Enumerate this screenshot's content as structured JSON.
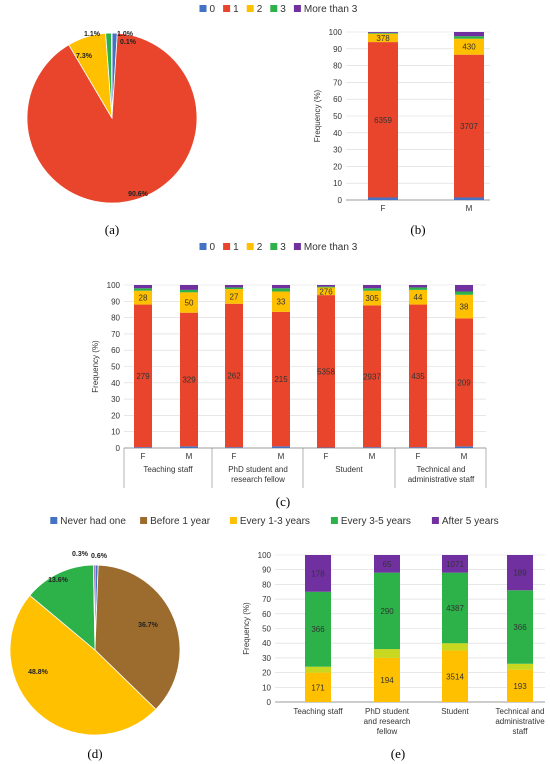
{
  "colors": {
    "c0": "#4472c4",
    "c1": "#e8452c",
    "c2": "#ffc000",
    "c3": "#2db24a",
    "c4": "#7030a0",
    "before1": "#9c6b2e",
    "grid": "#d9d9d9",
    "axis": "#808080"
  },
  "panel_labels": {
    "a": "(a)",
    "b": "(b)",
    "c": "(c)",
    "d": "(d)",
    "e": "(e)"
  },
  "chart_data": [
    {
      "id": "a",
      "type": "pie",
      "legend_position": "top",
      "legend": [
        "0",
        "1",
        "2",
        "3",
        "More than 3"
      ],
      "values": [
        1.0,
        90.6,
        7.3,
        1.1,
        0.1
      ],
      "labels": [
        "1.0%",
        "90.6%",
        "7.3%",
        "1.1%",
        "0.1%"
      ]
    },
    {
      "id": "b",
      "type": "bar",
      "stacked": true,
      "ylabel": "Frequency (%)",
      "ylim": [
        0,
        100
      ],
      "yticks": [
        "0",
        "10",
        "20",
        "30",
        "40",
        "50",
        "60",
        "70",
        "80",
        "90",
        "100"
      ],
      "categories": [
        "F",
        "M"
      ],
      "series": [
        {
          "name": "0",
          "values": [
            1.5,
            1.5
          ]
        },
        {
          "name": "1",
          "values": [
            92.5,
            85.0
          ]
        },
        {
          "name": "2",
          "values": [
            5.0,
            9.5
          ]
        },
        {
          "name": "3",
          "values": [
            0.5,
            1.5
          ]
        },
        {
          "name": "More than 3",
          "values": [
            0.5,
            2.5
          ]
        }
      ],
      "data_labels": [
        {
          "category": "F",
          "series": "1",
          "text": "6359"
        },
        {
          "category": "F",
          "series": "2",
          "text": "378"
        },
        {
          "category": "M",
          "series": "1",
          "text": "3707"
        },
        {
          "category": "M",
          "series": "2",
          "text": "430"
        }
      ]
    },
    {
      "id": "c",
      "type": "bar",
      "stacked": true,
      "legend_position": "top",
      "legend": [
        "0",
        "1",
        "2",
        "3",
        "More than 3"
      ],
      "ylabel": "Frequency (%)",
      "ylim": [
        0,
        100
      ],
      "yticks": [
        "0",
        "10",
        "20",
        "30",
        "40",
        "50",
        "60",
        "70",
        "80",
        "90",
        "100"
      ],
      "categories": [
        "F",
        "M",
        "F",
        "M",
        "F",
        "M",
        "F",
        "M"
      ],
      "groups": [
        "Teaching staff",
        "PhD student and research fellow",
        "Student",
        "Technical and administrative staff"
      ],
      "group_lines": [
        [
          "Teaching staff"
        ],
        [
          "PhD student and",
          "research fellow"
        ],
        [
          "Student"
        ],
        [
          "Technical and",
          "administrative staff"
        ]
      ],
      "series": [
        {
          "name": "0",
          "values": [
            0.5,
            1.0,
            0.5,
            1.0,
            0.3,
            0.5,
            0.5,
            1.0
          ]
        },
        {
          "name": "1",
          "values": [
            87.5,
            82.0,
            88.0,
            82.5,
            93.5,
            87.0,
            87.5,
            78.5
          ]
        },
        {
          "name": "2",
          "values": [
            8.5,
            12.5,
            9.0,
            12.5,
            4.7,
            9.0,
            9.0,
            14.5
          ]
        },
        {
          "name": "3",
          "values": [
            1.5,
            1.5,
            1.0,
            2.0,
            0.5,
            1.5,
            1.5,
            2.0
          ]
        },
        {
          "name": "More than 3",
          "values": [
            2.0,
            3.0,
            1.5,
            2.0,
            1.0,
            2.0,
            1.5,
            4.0
          ]
        }
      ],
      "data_labels_1": [
        "279",
        "329",
        "262",
        "215",
        "5358",
        "2937",
        "435",
        "209"
      ],
      "data_labels_2": [
        "28",
        "50",
        "27",
        "33",
        "276",
        "305",
        "44",
        "38"
      ]
    },
    {
      "id": "d",
      "type": "pie",
      "legend_position": "top",
      "legend": [
        "Never had one",
        "Before 1 year",
        "Every 1-3 years",
        "Every 3-5 years",
        "After 5 years"
      ],
      "values": [
        0.6,
        36.7,
        48.8,
        13.6,
        0.3
      ],
      "labels": [
        "0.6%",
        "36.7%",
        "48.8%",
        "13.6%",
        "0.3%"
      ]
    },
    {
      "id": "e",
      "type": "bar",
      "stacked": true,
      "ylabel": "Frequency (%)",
      "ylim": [
        0,
        100
      ],
      "yticks": [
        "0",
        "10",
        "20",
        "30",
        "40",
        "50",
        "60",
        "70",
        "80",
        "90",
        "100"
      ],
      "categories": [
        "Teaching staff",
        "PhD student and research fellow",
        "Student",
        "Technical and administrative staff"
      ],
      "category_lines": [
        [
          "Teaching staff"
        ],
        [
          "PhD student",
          "and research",
          "fellow"
        ],
        [
          "Student"
        ],
        [
          "Technical and",
          "administrative",
          "staff"
        ]
      ],
      "series": [
        {
          "name": "Every 1-3 years",
          "values": [
            20,
            30,
            35,
            22
          ]
        },
        {
          "name": "Before 1 year",
          "values": [
            4,
            6,
            5,
            4
          ]
        },
        {
          "name": "Every 3-5 years",
          "values": [
            51,
            52,
            48,
            50
          ]
        },
        {
          "name": "After 5 years",
          "values": [
            25,
            12,
            12,
            24
          ]
        }
      ],
      "data_labels": {
        "Every 1-3 years": [
          "171",
          "194",
          "3514",
          "193"
        ],
        "Every 3-5 years": [
          "366",
          "290",
          "4387",
          "366"
        ],
        "After 5 years": [
          "178",
          "65",
          "1071",
          "189"
        ]
      }
    }
  ]
}
